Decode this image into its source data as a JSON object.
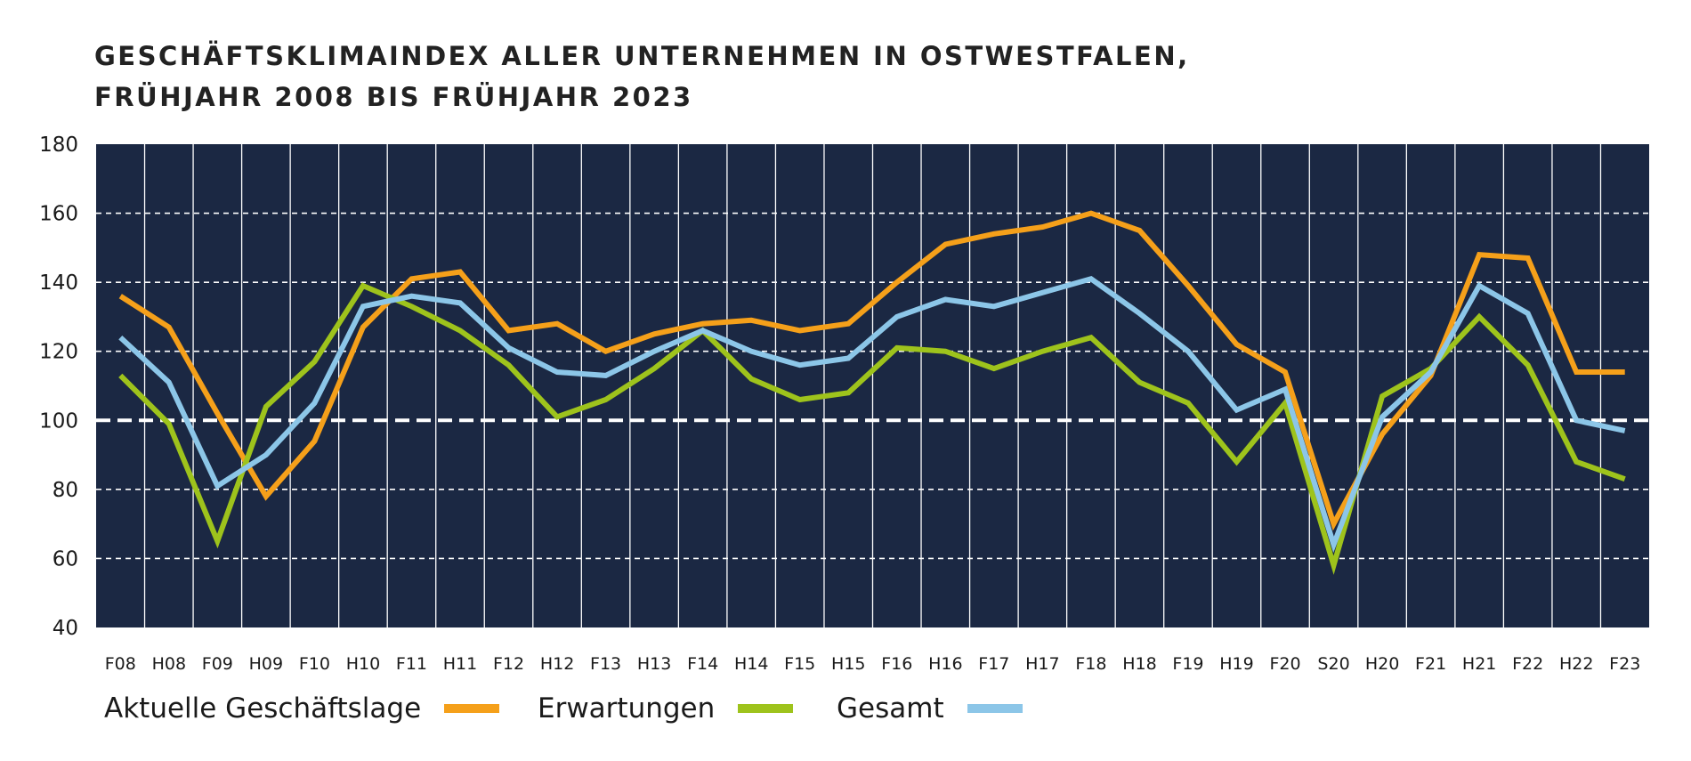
{
  "chart_data": {
    "type": "line",
    "title_lines": [
      "GESCHÄFTSKLIMAINDEX ALLER UNTERNEHMEN IN OSTWESTFALEN,",
      "FRÜHJAHR 2008 BIS FRÜHJAHR 2023"
    ],
    "categories": [
      "F08",
      "H08",
      "F09",
      "H09",
      "F10",
      "H10",
      "F11",
      "H11",
      "F12",
      "H12",
      "F13",
      "H13",
      "F14",
      "H14",
      "F15",
      "H15",
      "F16",
      "H16",
      "F17",
      "H17",
      "F18",
      "H18",
      "F19",
      "H19",
      "F20",
      "S20",
      "H20",
      "F21",
      "H21",
      "F22",
      "H22",
      "F23"
    ],
    "ylim": [
      40,
      180
    ],
    "yticks": [
      40,
      60,
      80,
      100,
      120,
      140,
      160,
      180
    ],
    "reference_line": 100,
    "grid": true,
    "legend_position": "bottom",
    "colors": {
      "plot_background": "#1b2843",
      "grid": "#ffffff"
    },
    "series": [
      {
        "name": "Aktuelle Geschäftslage",
        "color": "#f5a01a",
        "values": [
          136,
          127,
          102,
          78,
          94,
          127,
          141,
          143,
          126,
          128,
          120,
          125,
          128,
          129,
          126,
          128,
          140,
          151,
          154,
          156,
          160,
          155,
          139,
          122,
          114,
          70,
          96,
          113,
          148,
          147,
          114,
          114
        ]
      },
      {
        "name": "Erwartungen",
        "color": "#9ec31c",
        "values": [
          113,
          99,
          65,
          104,
          117,
          139,
          133,
          126,
          116,
          101,
          106,
          115,
          126,
          112,
          106,
          108,
          121,
          120,
          115,
          120,
          124,
          111,
          105,
          88,
          105,
          58,
          107,
          115,
          130,
          116,
          88,
          83
        ]
      },
      {
        "name": "Gesamt",
        "color": "#8cc6e8",
        "values": [
          124,
          111,
          81,
          90,
          105,
          133,
          136,
          134,
          121,
          114,
          113,
          120,
          126,
          120,
          116,
          118,
          130,
          135,
          133,
          137,
          141,
          131,
          120,
          103,
          109,
          64,
          101,
          114,
          139,
          131,
          100,
          97
        ]
      }
    ]
  }
}
